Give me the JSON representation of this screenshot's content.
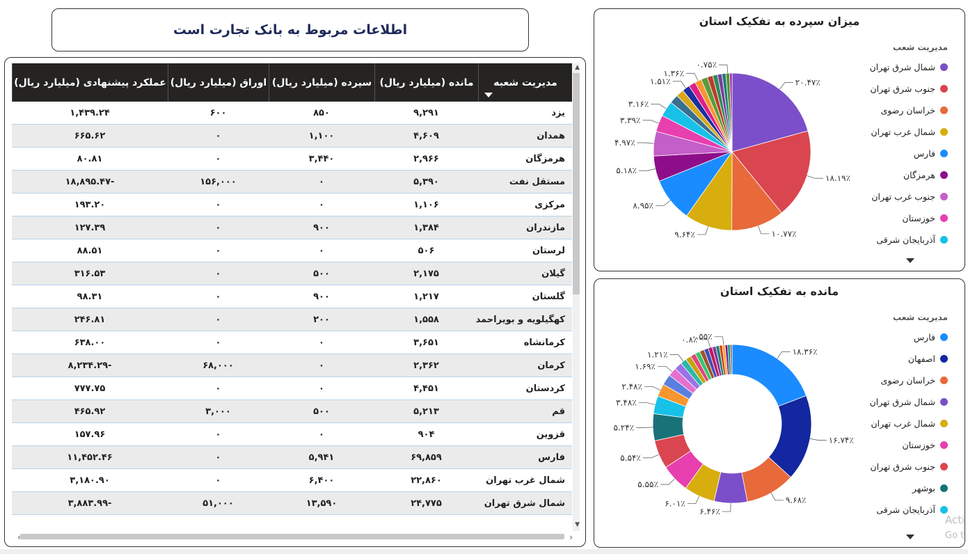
{
  "header": {
    "title": "اطلاعات مربوط به بانک تجارت  است"
  },
  "table": {
    "columns": [
      "مدیریت شعبه",
      "مانده (میلیارد ریال)",
      "سپرده (میلیارد ریال)",
      "اوراق (میلیارد ریال)",
      "عملکرد پیشنهادی (میلیارد ریال)"
    ],
    "rows": [
      [
        "یزد",
        "۹,۲۹۱",
        "۸۵۰",
        "۶۰۰",
        "۱,۴۳۹.۲۴"
      ],
      [
        "همدان",
        "۴,۶۰۹",
        "۱,۱۰۰",
        "۰",
        "۶۶۵.۶۲"
      ],
      [
        "هرمزگان",
        "۲,۹۶۶",
        "۳,۴۴۰",
        "۰",
        "۸۰.۸۱"
      ],
      [
        "مستقل نفت",
        "۵,۳۹۰",
        "۰",
        "۱۵۶,۰۰۰",
        "-۱۸,۸۹۵.۴۷"
      ],
      [
        "مرکزی",
        "۱,۱۰۶",
        "۰",
        "۰",
        "۱۹۳.۲۰"
      ],
      [
        "مازندران",
        "۱,۳۸۴",
        "۹۰۰",
        "۰",
        "۱۲۷.۳۹"
      ],
      [
        "لرستان",
        "۵۰۶",
        "۰",
        "۰",
        "۸۸.۵۱"
      ],
      [
        "گیلان",
        "۲,۱۷۵",
        "۵۰۰",
        "۰",
        "۳۱۶.۵۳"
      ],
      [
        "گلستان",
        "۱,۲۱۷",
        "۹۰۰",
        "۰",
        "۹۸.۳۱"
      ],
      [
        "کهگیلویه و بویراحمد",
        "۱,۵۵۸",
        "۲۰۰",
        "۰",
        "۲۴۶.۸۱"
      ],
      [
        "کرمانشاه",
        "۳,۶۵۱",
        "۰",
        "۰",
        "۶۳۸.۰۰"
      ],
      [
        "کرمان",
        "۲,۳۶۲",
        "۰",
        "۶۸,۰۰۰",
        "-۸,۲۳۴.۲۹"
      ],
      [
        "کردستان",
        "۴,۴۵۱",
        "۰",
        "۰",
        "۷۷۷.۷۵"
      ],
      [
        "قم",
        "۵,۲۱۳",
        "۵۰۰",
        "۳,۰۰۰",
        "۴۶۵.۹۲"
      ],
      [
        "قزوین",
        "۹۰۴",
        "۰",
        "۰",
        "۱۵۷.۹۶"
      ],
      [
        "فارس",
        "۶۹,۸۵۹",
        "۵,۹۴۱",
        "۰",
        "۱۱,۴۵۲.۴۶"
      ],
      [
        "شمال غرب تهران",
        "۲۲,۸۶۰",
        "۶,۴۰۰",
        "۰",
        "۳,۱۸۰.۹۰"
      ],
      [
        "شمال شرق تهران",
        "۲۴,۷۷۵",
        "۱۳,۵۹۰",
        "۵۱,۰۰۰",
        "-۳,۸۸۳.۹۹"
      ]
    ]
  },
  "chart_data": [
    {
      "type": "pie",
      "title": "میزان سپرده به تفکیک استان",
      "legend_title": "مدیریت شعب",
      "legend_placement": "right",
      "legend": [
        {
          "label": "شمال شرق تهران",
          "color": "#7B4FC9"
        },
        {
          "label": "جنوب شرق تهران",
          "color": "#D9464F"
        },
        {
          "label": "خراسان رضوی",
          "color": "#E8693A"
        },
        {
          "label": "شمال غرب تهران",
          "color": "#D8AD0E"
        },
        {
          "label": "فارس",
          "color": "#1A8CFF"
        },
        {
          "label": "هرمزگان",
          "color": "#8E0E8A"
        },
        {
          "label": "جنوب غرب تهران",
          "color": "#C45EC9"
        },
        {
          "label": "خوزستان",
          "color": "#E83FAE"
        },
        {
          "label": "آذربایجان شرقی",
          "color": "#17C1E8"
        }
      ],
      "slices": [
        {
          "value": 20.47,
          "label": "۲۰.۴۷٪",
          "color": "#7B4FC9"
        },
        {
          "value": 18.19,
          "label": "۱۸.۱۹٪",
          "color": "#D9464F"
        },
        {
          "value": 10.77,
          "label": "۱۰.۷۷٪",
          "color": "#E8693A"
        },
        {
          "value": 9.64,
          "label": "۹.۶۴٪",
          "color": "#D8AD0E"
        },
        {
          "value": 8.95,
          "label": "۸.۹۵٪",
          "color": "#1A8CFF"
        },
        {
          "value": 5.18,
          "label": "۵.۱۸٪",
          "color": "#8E0E8A"
        },
        {
          "value": 4.97,
          "label": "۴.۹۷٪",
          "color": "#C45EC9"
        },
        {
          "value": 3.39,
          "label": "۳.۳۹٪",
          "color": "#E83FAE"
        },
        {
          "value": 3.16,
          "label": "۳.۱۶٪",
          "color": "#17C1E8"
        },
        {
          "value": 1.8,
          "label": "",
          "color": "#3B6E8F"
        },
        {
          "value": 1.6,
          "label": "",
          "color": "#D7A81B"
        },
        {
          "value": 1.51,
          "label": "۱.۵۱٪",
          "color": "#1D2FA0"
        },
        {
          "value": 1.4,
          "label": "",
          "color": "#E01F86"
        },
        {
          "value": 1.36,
          "label": "۱.۳۶٪",
          "color": "#F7962F"
        },
        {
          "value": 1.3,
          "label": "",
          "color": "#5A9B3A"
        },
        {
          "value": 1.1,
          "label": "",
          "color": "#C03A2B"
        },
        {
          "value": 1.0,
          "label": "",
          "color": "#2E8B57"
        },
        {
          "value": 0.9,
          "label": "",
          "color": "#7A3E9D"
        },
        {
          "value": 0.8,
          "label": "",
          "color": "#1B7F79"
        },
        {
          "value": 0.75,
          "label": "۰.۷۵٪",
          "color": "#5B8E2E"
        },
        {
          "value": 0.5,
          "label": "",
          "color": "#9C27B0"
        }
      ]
    },
    {
      "type": "donut",
      "title": "مانده به تفکیک استان",
      "legend_title": "مدیریت شعب",
      "legend_placement": "right",
      "legend": [
        {
          "label": "فارس",
          "color": "#1A8CFF"
        },
        {
          "label": "اصفهان",
          "color": "#1227A0"
        },
        {
          "label": "خراسان رضوی",
          "color": "#E8693A"
        },
        {
          "label": "شمال شرق تهران",
          "color": "#7B4FC9"
        },
        {
          "label": "شمال غرب تهران",
          "color": "#D8AD0E"
        },
        {
          "label": "خوزستان",
          "color": "#E83FAE"
        },
        {
          "label": "جنوب شرق تهران",
          "color": "#D9464F"
        },
        {
          "label": "بوشهر",
          "color": "#197278"
        },
        {
          "label": "آذربایجان شرقی",
          "color": "#17C1E8"
        }
      ],
      "slices": [
        {
          "value": 18.36,
          "label": "۱۸.۳۶٪",
          "color": "#1A8CFF"
        },
        {
          "value": 16.74,
          "label": "۱۶.۷۴٪",
          "color": "#1227A0"
        },
        {
          "value": 9.68,
          "label": "۹.۶۸٪",
          "color": "#E8693A"
        },
        {
          "value": 6.46,
          "label": "۶.۴۶٪",
          "color": "#7B4FC9"
        },
        {
          "value": 6.01,
          "label": "۶.۰۱٪",
          "color": "#D8AD0E"
        },
        {
          "value": 5.55,
          "label": "۵.۵۵٪",
          "color": "#E83FAE"
        },
        {
          "value": 5.54,
          "label": "۵.۵۴٪",
          "color": "#D9464F"
        },
        {
          "value": 5.24,
          "label": "۵.۲۴٪",
          "color": "#197278"
        },
        {
          "value": 3.48,
          "label": "۳.۴۸٪",
          "color": "#17C1E8"
        },
        {
          "value": 2.48,
          "label": "۲.۴۸٪",
          "color": "#F7962F"
        },
        {
          "value": 2.1,
          "label": "",
          "color": "#5B7FE0"
        },
        {
          "value": 1.69,
          "label": "۱.۶۹٪",
          "color": "#E56FD0"
        },
        {
          "value": 1.5,
          "label": "",
          "color": "#9A73E8"
        },
        {
          "value": 1.21,
          "label": "۱.۲۱٪",
          "color": "#2BB8A5"
        },
        {
          "value": 1.1,
          "label": "",
          "color": "#C9A013"
        },
        {
          "value": 1.0,
          "label": "",
          "color": "#E0457B"
        },
        {
          "value": 0.95,
          "label": "",
          "color": "#38C46F"
        },
        {
          "value": 0.9,
          "label": "",
          "color": "#A0522D"
        },
        {
          "value": 0.85,
          "label": "",
          "color": "#3A4FB8"
        },
        {
          "value": 0.8,
          "label": "۰.۸٪",
          "color": "#C2185B"
        },
        {
          "value": 0.7,
          "label": "",
          "color": "#7A3E9D"
        },
        {
          "value": 0.65,
          "label": "",
          "color": "#1B7F79"
        },
        {
          "value": 0.6,
          "label": "",
          "color": "#D84315"
        },
        {
          "value": 0.55,
          "label": "۰.۵۵٪",
          "color": "#F9A825"
        },
        {
          "value": 0.5,
          "label": "",
          "color": "#6A1B9A"
        },
        {
          "value": 0.45,
          "label": "",
          "color": "#00897B"
        },
        {
          "value": 0.4,
          "label": "",
          "color": "#8D6E63"
        }
      ]
    }
  ],
  "watermark": {
    "line1": "Acti",
    "line2": "Go t"
  }
}
